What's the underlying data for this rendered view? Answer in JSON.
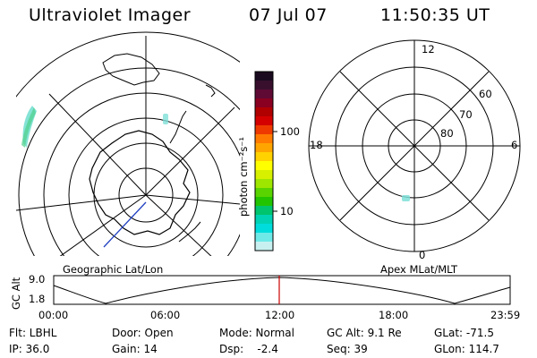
{
  "header": {
    "instrument": "Ultraviolet Imager",
    "date": "07 Jul 07",
    "time": "11:50:35 UT"
  },
  "colorbar": {
    "unit_label": "photon cm⁻²s⁻¹",
    "ticks": [
      "100",
      "10"
    ],
    "colors": [
      "#1a0a1f",
      "#38102d",
      "#5e0a35",
      "#8a0020",
      "#b00000",
      "#d40000",
      "#ee3a00",
      "#ff7b00",
      "#ffa500",
      "#ffd200",
      "#ffff00",
      "#d6f000",
      "#9ee600",
      "#5ad400",
      "#22c400",
      "#00c46e",
      "#00d2b4",
      "#00dcdc",
      "#6fe8e8",
      "#c8f0f0"
    ]
  },
  "polar_plot": {
    "mlt_labels": [
      "12",
      "18",
      "6",
      "0"
    ],
    "lat_labels": [
      "60",
      "70",
      "80"
    ]
  },
  "timeline": {
    "left_label": "Geographic Lat/Lon",
    "right_label": "Apex MLat/MLT",
    "y_axis_title": "GC Alt",
    "y_ticks": [
      "9.0",
      "1.8"
    ],
    "x_ticks": [
      "00:00",
      "06:00",
      "12:00",
      "18:00",
      "23:59"
    ],
    "marker_color": "#cc0000"
  },
  "info": {
    "flt": "Flt: LBHL",
    "ip": "IP: 36.0",
    "door": "Door: Open",
    "gain": "Gain: 14",
    "mode": "Mode: Normal",
    "dsp": "Dsp:    -2.4",
    "gcalt": "GC Alt: 9.1 Re",
    "seq": "Seq: 39",
    "glat": "GLat: -71.5",
    "glon": "GLon: 114.7"
  }
}
